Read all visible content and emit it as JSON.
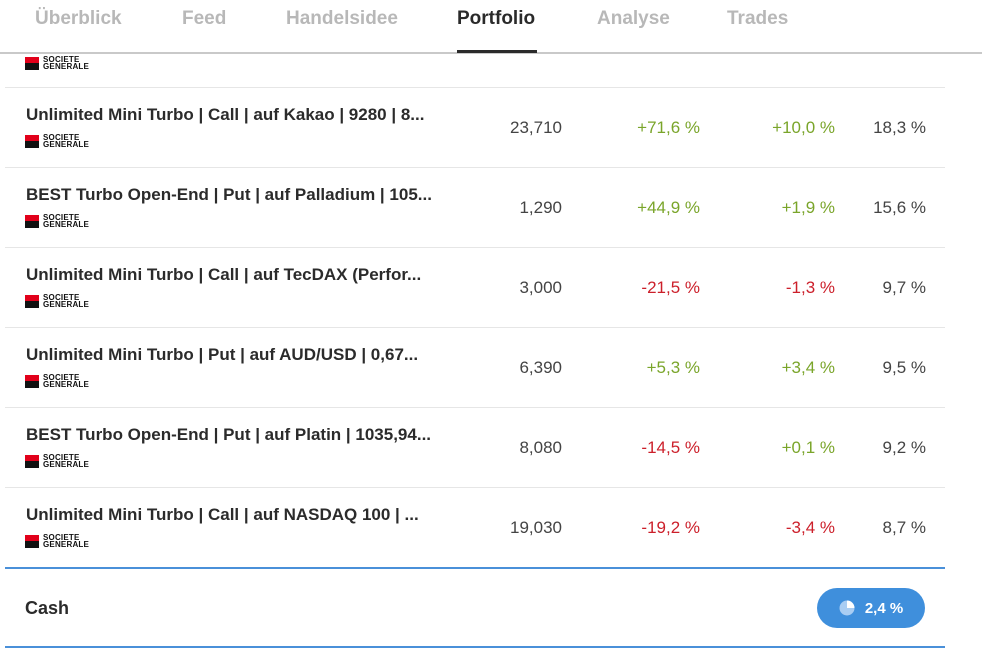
{
  "tabs": [
    {
      "label": "Überblick",
      "active": false
    },
    {
      "label": "Feed",
      "active": false
    },
    {
      "label": "Handelsidee",
      "active": false
    },
    {
      "label": "Portfolio",
      "active": true
    },
    {
      "label": "Analyse",
      "active": false
    },
    {
      "label": "Trades",
      "active": false
    }
  ],
  "issuer_logo": {
    "line1": "SOCIETE",
    "line2": "GENERALE",
    "red": "#e2001a",
    "black": "#111111"
  },
  "positions": [
    {
      "name": "Unlimited Mini Turbo | Call | auf Kakao | 9280 | 8...",
      "price": "23,710",
      "perf_total": "+71,6 %",
      "perf_total_sign": "pos",
      "perf_day": "+10,0 %",
      "perf_day_sign": "pos",
      "weight": "18,3 %"
    },
    {
      "name": "BEST Turbo Open-End | Put | auf Palladium | 105...",
      "price": "1,290",
      "perf_total": "+44,9 %",
      "perf_total_sign": "pos",
      "perf_day": "+1,9 %",
      "perf_day_sign": "pos",
      "weight": "15,6 %"
    },
    {
      "name": "Unlimited Mini Turbo | Call | auf TecDAX (Perfor...",
      "price": "3,000",
      "perf_total": "-21,5 %",
      "perf_total_sign": "neg",
      "perf_day": "-1,3 %",
      "perf_day_sign": "neg",
      "weight": "9,7 %"
    },
    {
      "name": "Unlimited Mini Turbo | Put | auf AUD/USD | 0,67...",
      "price": "6,390",
      "perf_total": "+5,3 %",
      "perf_total_sign": "pos",
      "perf_day": "+3,4 %",
      "perf_day_sign": "pos",
      "weight": "9,5 %"
    },
    {
      "name": "BEST Turbo Open-End | Put | auf Platin | 1035,94...",
      "price": "8,080",
      "perf_total": "-14,5 %",
      "perf_total_sign": "neg",
      "perf_day": "+0,1 %",
      "perf_day_sign": "pos",
      "weight": "9,2 %"
    },
    {
      "name": "Unlimited Mini Turbo | Call | auf NASDAQ 100 | ...",
      "price": "19,030",
      "perf_total": "-19,2 %",
      "perf_total_sign": "neg",
      "perf_day": "-3,4 %",
      "perf_day_sign": "neg",
      "weight": "8,7 %"
    }
  ],
  "cash": {
    "label": "Cash",
    "value": "2,4 %",
    "icon": "pie-chart-icon",
    "badge_color": "#3f8fdc"
  },
  "colors": {
    "positive": "#7aa52a",
    "negative": "#cc1f2a",
    "accent": "#4a90d9"
  }
}
